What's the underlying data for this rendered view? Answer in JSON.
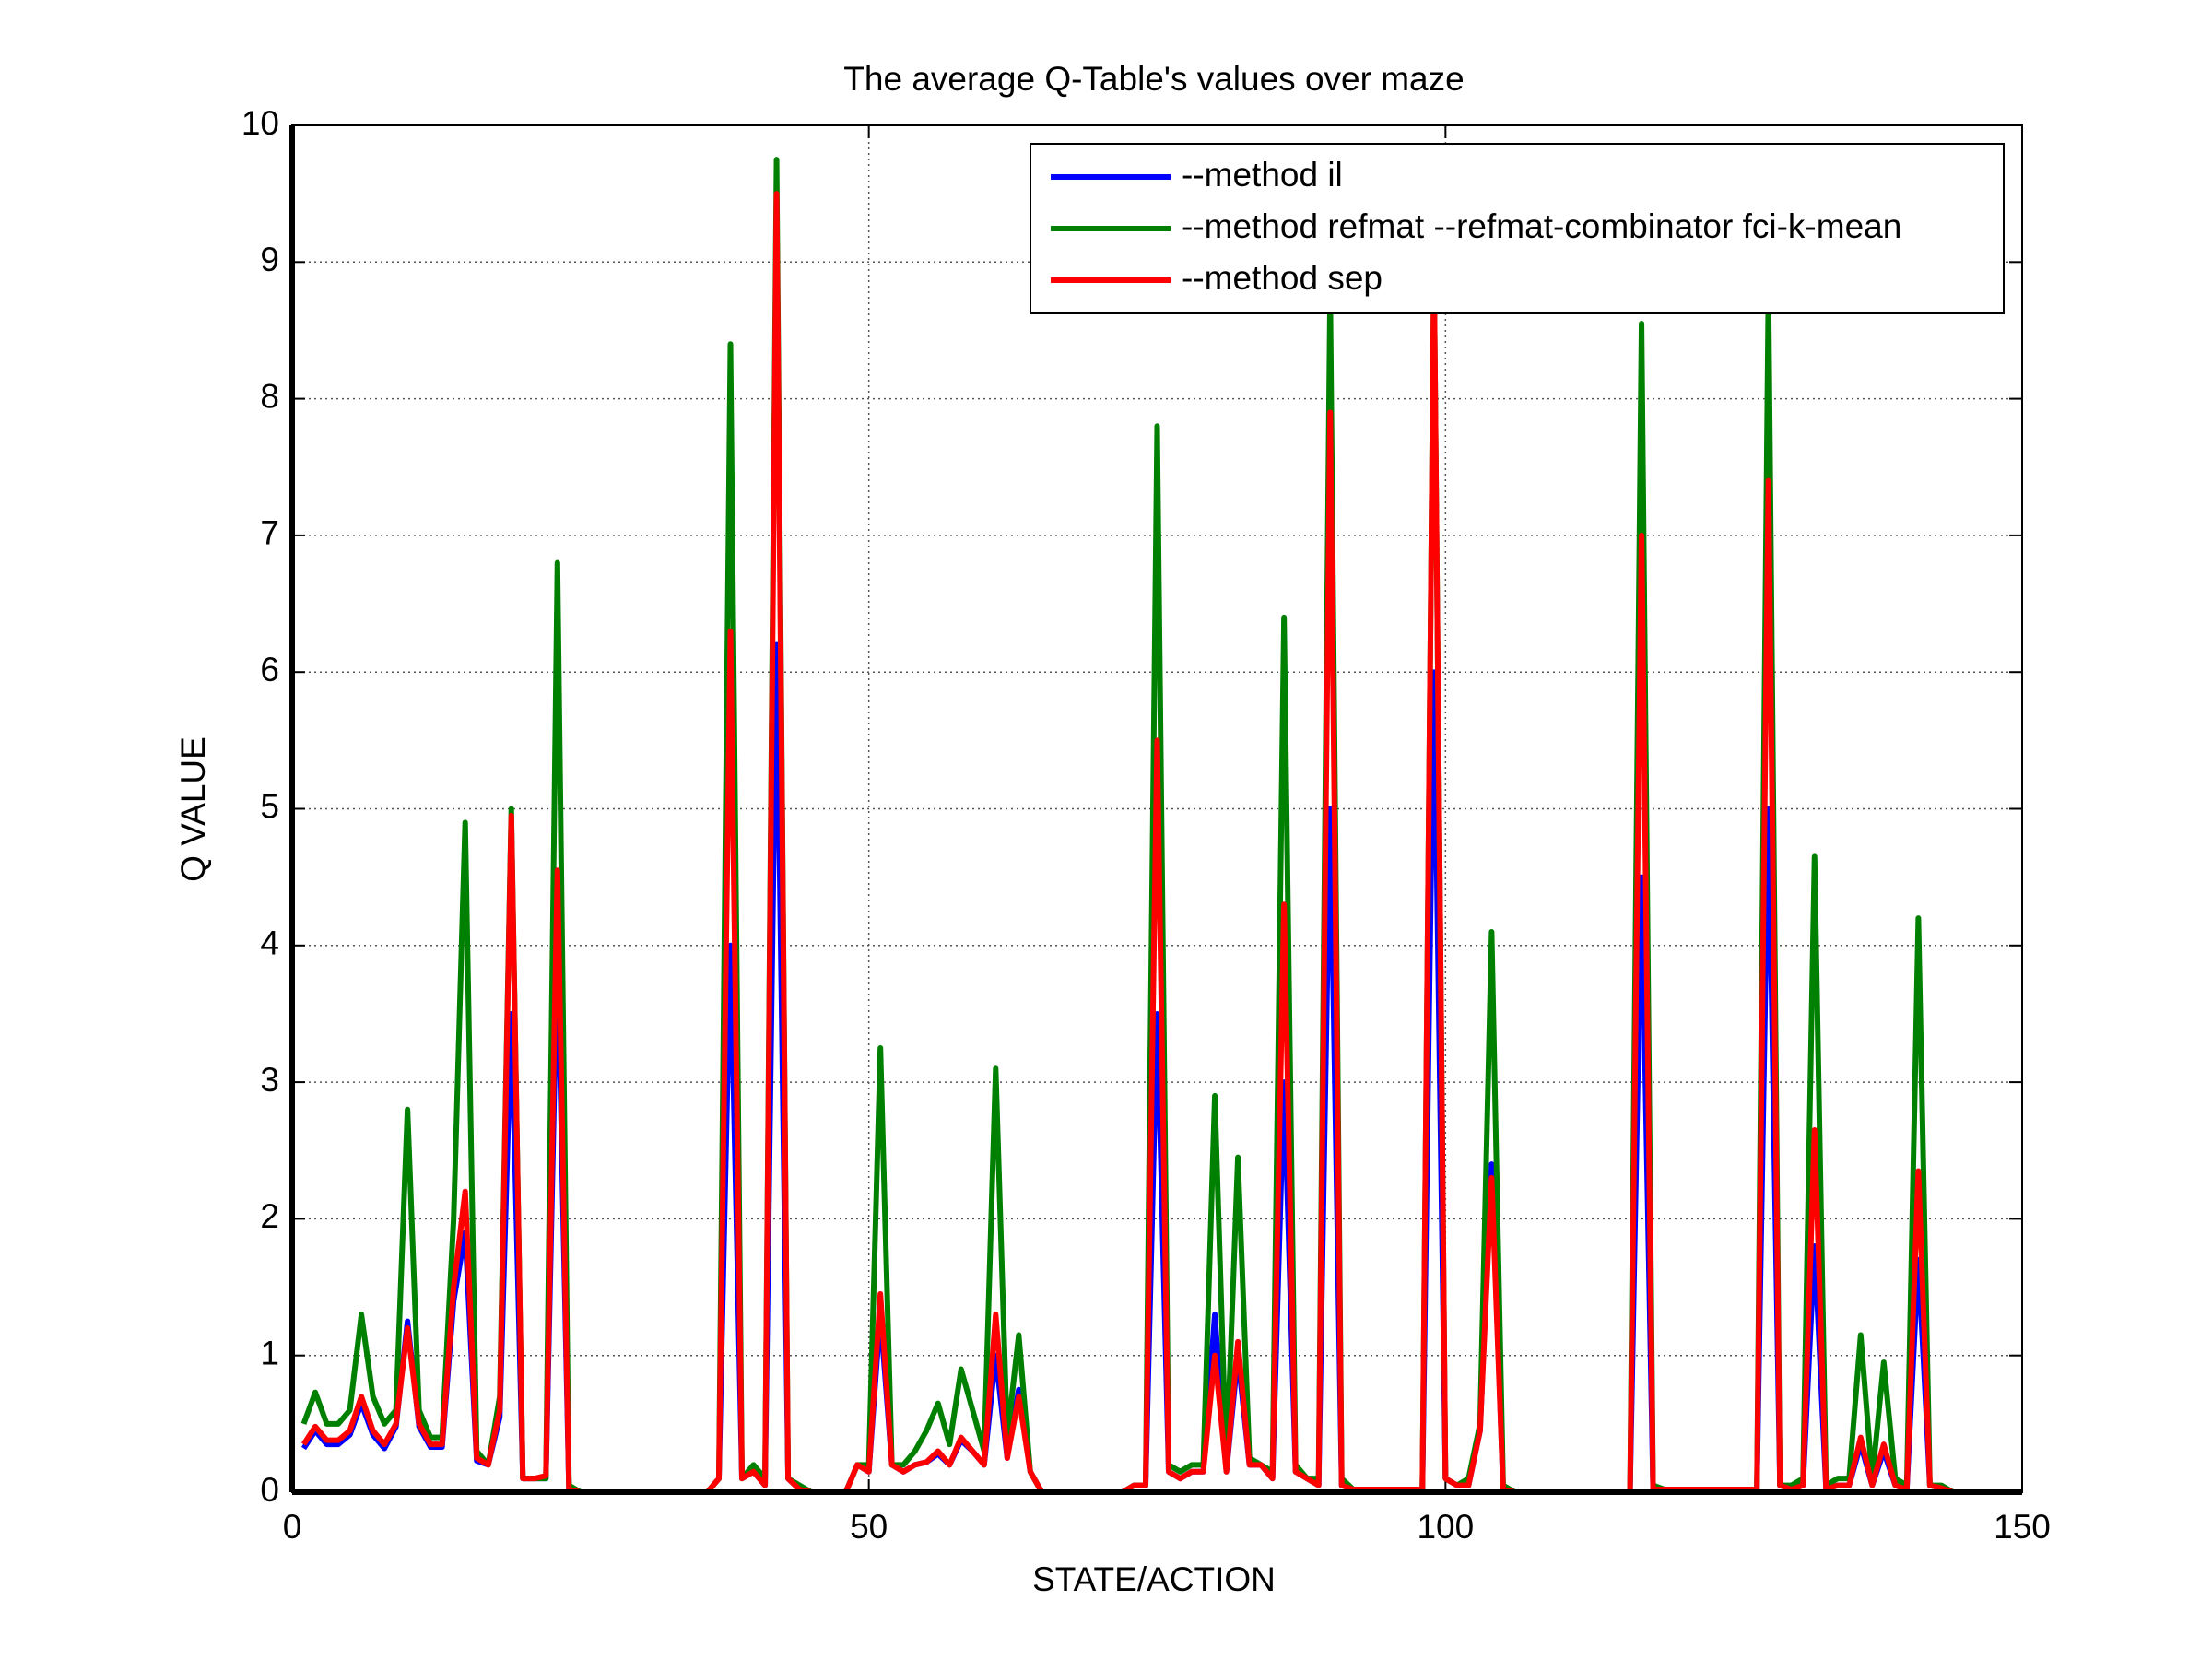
{
  "chart_data": {
    "type": "line",
    "title": "The average Q-Table's values over maze",
    "xlabel": "STATE/ACTION",
    "ylabel": "Q VALUE",
    "x": [
      1,
      2,
      3,
      4,
      5,
      6,
      7,
      8,
      9,
      10,
      11,
      12,
      13,
      14,
      15,
      16,
      17,
      18,
      19,
      20,
      21,
      22,
      23,
      24,
      25,
      26,
      27,
      28,
      29,
      30,
      31,
      32,
      33,
      34,
      35,
      36,
      37,
      38,
      39,
      40,
      41,
      42,
      43,
      44,
      45,
      46,
      47,
      48,
      49,
      50,
      51,
      52,
      53,
      54,
      55,
      56,
      57,
      58,
      59,
      60,
      61,
      62,
      63,
      64,
      65,
      66,
      67,
      68,
      69,
      70,
      71,
      72,
      73,
      74,
      75,
      76,
      77,
      78,
      79,
      80,
      81,
      82,
      83,
      84,
      85,
      86,
      87,
      88,
      89,
      90,
      91,
      92,
      93,
      94,
      95,
      96,
      97,
      98,
      99,
      100,
      101,
      102,
      103,
      104,
      105,
      106,
      107,
      108,
      109,
      110,
      111,
      112,
      113,
      114,
      115,
      116,
      117,
      118,
      119,
      120,
      121,
      122,
      123,
      124,
      125,
      126,
      127,
      128,
      129,
      130,
      131,
      132,
      133,
      134,
      135,
      136,
      137,
      138,
      139,
      140,
      141,
      142,
      143,
      144
    ],
    "series": [
      {
        "name": "--method il",
        "color": "#0000ff",
        "values": [
          0.32,
          0.45,
          0.35,
          0.35,
          0.42,
          0.65,
          0.42,
          0.32,
          0.48,
          1.25,
          0.48,
          0.33,
          0.33,
          1.4,
          1.9,
          0.23,
          0.2,
          0.55,
          3.5,
          0.1,
          0.1,
          0.1,
          4.0,
          0.02,
          0,
          0,
          0,
          0,
          0,
          0,
          0,
          0,
          0,
          0,
          0,
          0,
          0.1,
          4.0,
          0.1,
          0.15,
          0.05,
          6.2,
          0.1,
          0.02,
          0,
          0,
          0,
          0,
          0.2,
          0.15,
          1.3,
          0.2,
          0.15,
          0.2,
          0.22,
          0.28,
          0.2,
          0.38,
          0.3,
          0.2,
          1.0,
          0.25,
          0.75,
          0.15,
          0,
          0,
          0,
          0,
          0,
          0,
          0,
          0,
          0.05,
          0.05,
          3.5,
          0.15,
          0.1,
          0.15,
          0.15,
          1.3,
          0.15,
          1.0,
          0.2,
          0.2,
          0.1,
          3.0,
          0.15,
          0.1,
          0.05,
          5.0,
          0.05,
          0.02,
          0.02,
          0.02,
          0.02,
          0.02,
          0.02,
          0.02,
          6.0,
          0.1,
          0.05,
          0.05,
          0.45,
          2.4,
          0.02,
          0,
          0,
          0,
          0,
          0,
          0,
          0,
          0,
          0,
          0,
          0,
          4.5,
          0.02,
          0.02,
          0.02,
          0.02,
          0.02,
          0.02,
          0.02,
          0.02,
          0.02,
          0.02,
          5.0,
          0.05,
          0.02,
          0.05,
          1.8,
          0.02,
          0.05,
          0.05,
          0.35,
          0.05,
          0.3,
          0.05,
          0.02,
          1.7,
          0.05,
          0.03,
          0
        ]
      },
      {
        "name": "--method refmat --refmat-combinator fci-k-mean",
        "color": "#008000",
        "values": [
          0.5,
          0.73,
          0.5,
          0.5,
          0.6,
          1.3,
          0.7,
          0.5,
          0.6,
          2.8,
          0.6,
          0.4,
          0.4,
          2.0,
          4.9,
          0.3,
          0.2,
          0.7,
          5.0,
          0.1,
          0.1,
          0.1,
          6.8,
          0.05,
          0,
          0,
          0,
          0,
          0,
          0,
          0,
          0,
          0,
          0,
          0,
          0,
          0.1,
          8.4,
          0.1,
          0.2,
          0.1,
          9.75,
          0.1,
          0.05,
          0,
          0,
          0,
          0,
          0.2,
          0.2,
          3.25,
          0.2,
          0.2,
          0.3,
          0.45,
          0.65,
          0.35,
          0.9,
          0.6,
          0.3,
          3.1,
          0.4,
          1.15,
          0.15,
          0,
          0,
          0,
          0,
          0,
          0,
          0,
          0,
          0.05,
          0.05,
          7.8,
          0.2,
          0.15,
          0.2,
          0.2,
          2.9,
          0.2,
          2.45,
          0.25,
          0.2,
          0.15,
          6.4,
          0.2,
          0.1,
          0.1,
          8.8,
          0.1,
          0.02,
          0.02,
          0.02,
          0.02,
          0.02,
          0.02,
          0.02,
          9.0,
          0.1,
          0.05,
          0.1,
          0.5,
          4.1,
          0.05,
          0,
          0,
          0,
          0,
          0,
          0,
          0,
          0,
          0,
          0,
          0,
          8.55,
          0.05,
          0.02,
          0.02,
          0.02,
          0.02,
          0.02,
          0.02,
          0.02,
          0.02,
          0.02,
          8.8,
          0.05,
          0.05,
          0.1,
          4.65,
          0.05,
          0.1,
          0.1,
          1.15,
          0.1,
          0.95,
          0.1,
          0.05,
          4.2,
          0.05,
          0.05,
          0
        ]
      },
      {
        "name": "--method sep",
        "color": "#ff0000",
        "values": [
          0.35,
          0.48,
          0.38,
          0.38,
          0.45,
          0.7,
          0.45,
          0.35,
          0.5,
          1.2,
          0.5,
          0.35,
          0.35,
          1.5,
          2.2,
          0.25,
          0.2,
          0.6,
          4.95,
          0.1,
          0.1,
          0.12,
          4.55,
          0.02,
          0,
          0,
          0,
          0,
          0,
          0,
          0,
          0,
          0,
          0,
          0,
          0,
          0.1,
          6.3,
          0.1,
          0.15,
          0.05,
          9.5,
          0.1,
          0.02,
          0,
          0,
          0,
          0,
          0.2,
          0.15,
          1.45,
          0.2,
          0.15,
          0.2,
          0.22,
          0.3,
          0.2,
          0.4,
          0.3,
          0.2,
          1.3,
          0.25,
          0.7,
          0.15,
          0,
          0,
          0,
          0,
          0,
          0,
          0,
          0,
          0.05,
          0.05,
          5.5,
          0.15,
          0.1,
          0.15,
          0.15,
          1.0,
          0.15,
          1.1,
          0.2,
          0.2,
          0.1,
          4.3,
          0.15,
          0.1,
          0.05,
          7.9,
          0.05,
          0.02,
          0.02,
          0.02,
          0.02,
          0.02,
          0.02,
          0.02,
          9.0,
          0.1,
          0.05,
          0.05,
          0.45,
          2.3,
          0.02,
          0,
          0,
          0,
          0,
          0,
          0,
          0,
          0,
          0,
          0,
          0,
          7.0,
          0.02,
          0.02,
          0.02,
          0.02,
          0.02,
          0.02,
          0.02,
          0.02,
          0.02,
          0.02,
          7.4,
          0.05,
          0.02,
          0.05,
          2.65,
          0.02,
          0.05,
          0.05,
          0.4,
          0.05,
          0.35,
          0.05,
          0.02,
          2.35,
          0.05,
          0.03,
          0
        ]
      }
    ],
    "xlim": [
      0,
      150
    ],
    "xticks": [
      0,
      50,
      100,
      150
    ],
    "ylim": [
      0,
      10
    ],
    "yticks": [
      0,
      1,
      2,
      3,
      4,
      5,
      6,
      7,
      8,
      9,
      10
    ],
    "grid": true,
    "legend": "upper right"
  }
}
